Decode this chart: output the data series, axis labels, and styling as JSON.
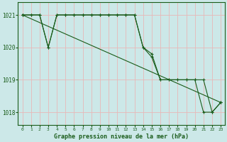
{
  "title": "Graphe pression niveau de la mer (hPa)",
  "bg_color": "#cce8e8",
  "grid_color": "#e8b8b8",
  "line_color": "#1a5c1a",
  "xlim": [
    -0.5,
    23.5
  ],
  "ylim": [
    1017.6,
    1021.4
  ],
  "yticks": [
    1018,
    1019,
    1020,
    1021
  ],
  "xticks": [
    0,
    1,
    2,
    3,
    4,
    5,
    6,
    7,
    8,
    9,
    10,
    11,
    12,
    13,
    14,
    15,
    16,
    17,
    18,
    19,
    20,
    21,
    22,
    23
  ],
  "lines": [
    {
      "x": [
        0,
        23
      ],
      "y": [
        1021.0,
        1018.3
      ]
    },
    {
      "x": [
        0,
        1,
        2,
        3,
        4,
        5,
        6,
        7,
        8,
        9,
        10,
        11,
        12,
        13,
        14,
        15,
        16,
        17,
        18,
        19,
        20,
        21,
        22,
        23
      ],
      "y": [
        1021,
        1021,
        1021,
        1020,
        1021,
        1021,
        1021,
        1021,
        1021,
        1021,
        1021,
        1021,
        1021,
        1021,
        1020,
        1019.8,
        1019,
        1019,
        1019,
        1019,
        1019,
        1018,
        1018,
        1018.3
      ]
    },
    {
      "x": [
        0,
        1,
        2,
        3,
        4,
        5,
        6,
        7,
        8,
        9,
        10,
        11,
        12,
        13,
        14,
        15,
        16,
        17,
        18,
        19,
        20,
        21,
        22,
        23
      ],
      "y": [
        1021,
        1021,
        1021,
        1020,
        1021,
        1021,
        1021,
        1021,
        1021,
        1021,
        1021,
        1021,
        1021,
        1021,
        1020,
        1019.7,
        1019,
        1019,
        1019,
        1019,
        1019,
        1019.0,
        1018,
        1018.3
      ]
    }
  ]
}
